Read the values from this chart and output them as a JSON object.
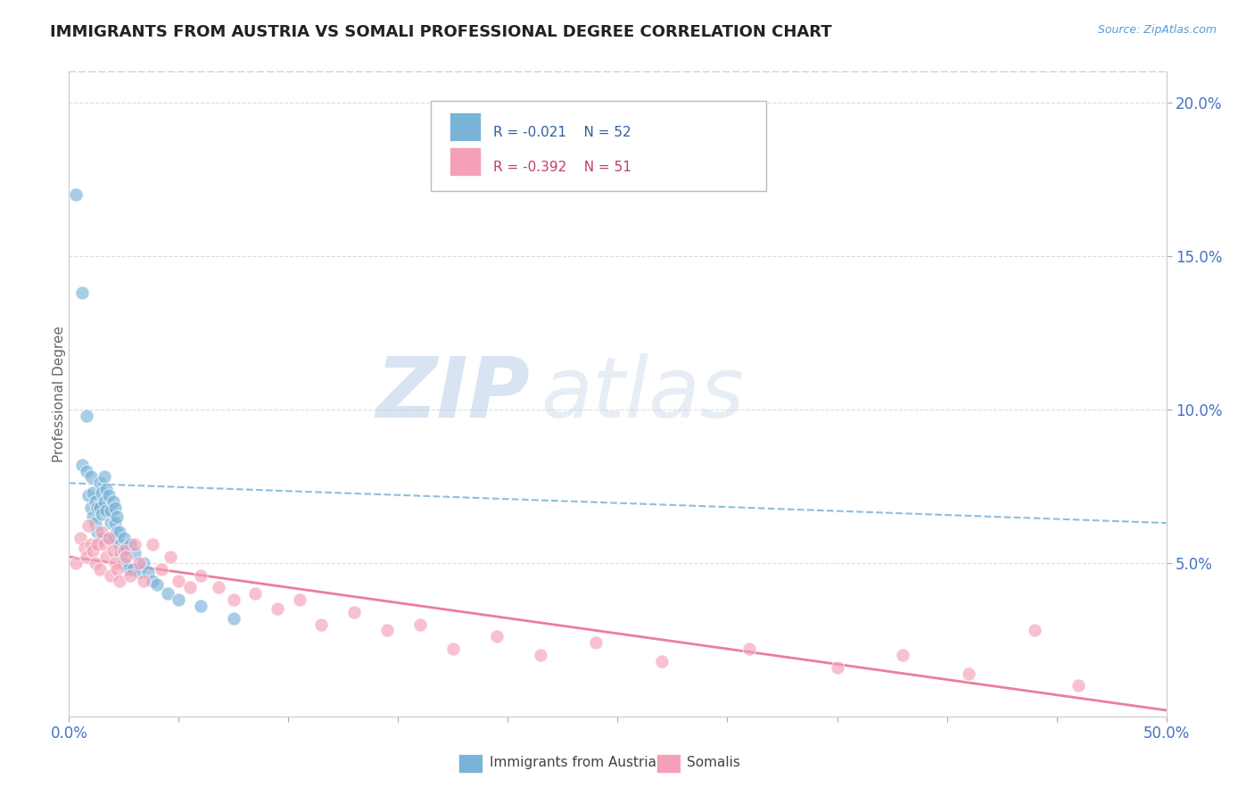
{
  "title": "IMMIGRANTS FROM AUSTRIA VS SOMALI PROFESSIONAL DEGREE CORRELATION CHART",
  "source_text": "Source: ZipAtlas.com",
  "ylabel": "Professional Degree",
  "xlim": [
    0.0,
    0.5
  ],
  "ylim": [
    0.0,
    0.21
  ],
  "xticks": [
    0.0,
    0.05,
    0.1,
    0.15,
    0.2,
    0.25,
    0.3,
    0.35,
    0.4,
    0.45,
    0.5
  ],
  "xticklabels": [
    "0.0%",
    "",
    "",
    "",
    "",
    "",
    "",
    "",
    "",
    "",
    "50.0%"
  ],
  "yticks_right": [
    0.05,
    0.1,
    0.15,
    0.2
  ],
  "yticklabels_right": [
    "5.0%",
    "10.0%",
    "15.0%",
    "20.0%"
  ],
  "legend_r1": "R = -0.021",
  "legend_n1": "N = 52",
  "legend_r2": "R = -0.392",
  "legend_n2": "N = 51",
  "legend_label1": "Immigrants from Austria",
  "legend_label2": "Somalis",
  "color_austria": "#7ab3d8",
  "color_somali": "#f4a0b8",
  "trendline_color_austria": "#7ab3d8",
  "trendline_color_somali": "#e87090",
  "watermark_zip": "ZIP",
  "watermark_atlas": "atlas",
  "austria_x": [
    0.003,
    0.006,
    0.006,
    0.008,
    0.008,
    0.009,
    0.01,
    0.01,
    0.011,
    0.011,
    0.012,
    0.012,
    0.013,
    0.013,
    0.014,
    0.014,
    0.015,
    0.015,
    0.015,
    0.016,
    0.016,
    0.017,
    0.017,
    0.018,
    0.018,
    0.019,
    0.019,
    0.02,
    0.02,
    0.021,
    0.021,
    0.022,
    0.022,
    0.023,
    0.023,
    0.024,
    0.025,
    0.025,
    0.026,
    0.027,
    0.028,
    0.029,
    0.03,
    0.032,
    0.034,
    0.036,
    0.038,
    0.04,
    0.045,
    0.05,
    0.06,
    0.075
  ],
  "austria_y": [
    0.17,
    0.138,
    0.082,
    0.098,
    0.08,
    0.072,
    0.078,
    0.068,
    0.073,
    0.065,
    0.07,
    0.063,
    0.068,
    0.06,
    0.076,
    0.068,
    0.073,
    0.066,
    0.058,
    0.078,
    0.07,
    0.074,
    0.067,
    0.058,
    0.072,
    0.063,
    0.067,
    0.058,
    0.07,
    0.063,
    0.068,
    0.06,
    0.065,
    0.056,
    0.06,
    0.053,
    0.058,
    0.05,
    0.055,
    0.048,
    0.056,
    0.048,
    0.053,
    0.047,
    0.05,
    0.047,
    0.044,
    0.043,
    0.04,
    0.038,
    0.036,
    0.032
  ],
  "somali_x": [
    0.003,
    0.005,
    0.007,
    0.008,
    0.009,
    0.01,
    0.011,
    0.012,
    0.013,
    0.014,
    0.015,
    0.016,
    0.017,
    0.018,
    0.019,
    0.02,
    0.021,
    0.022,
    0.023,
    0.025,
    0.026,
    0.028,
    0.03,
    0.032,
    0.034,
    0.038,
    0.042,
    0.046,
    0.05,
    0.055,
    0.06,
    0.068,
    0.075,
    0.085,
    0.095,
    0.105,
    0.115,
    0.13,
    0.145,
    0.16,
    0.175,
    0.195,
    0.215,
    0.24,
    0.27,
    0.31,
    0.35,
    0.38,
    0.41,
    0.44,
    0.46
  ],
  "somali_y": [
    0.05,
    0.058,
    0.055,
    0.052,
    0.062,
    0.056,
    0.054,
    0.05,
    0.056,
    0.048,
    0.06,
    0.056,
    0.052,
    0.058,
    0.046,
    0.054,
    0.05,
    0.048,
    0.044,
    0.054,
    0.052,
    0.046,
    0.056,
    0.05,
    0.044,
    0.056,
    0.048,
    0.052,
    0.044,
    0.042,
    0.046,
    0.042,
    0.038,
    0.04,
    0.035,
    0.038,
    0.03,
    0.034,
    0.028,
    0.03,
    0.022,
    0.026,
    0.02,
    0.024,
    0.018,
    0.022,
    0.016,
    0.02,
    0.014,
    0.028,
    0.01
  ],
  "austria_trend_x": [
    0.0,
    0.5
  ],
  "austria_trend_y": [
    0.076,
    0.063
  ],
  "somali_trend_x": [
    0.0,
    0.5
  ],
  "somali_trend_y": [
    0.052,
    0.002
  ]
}
